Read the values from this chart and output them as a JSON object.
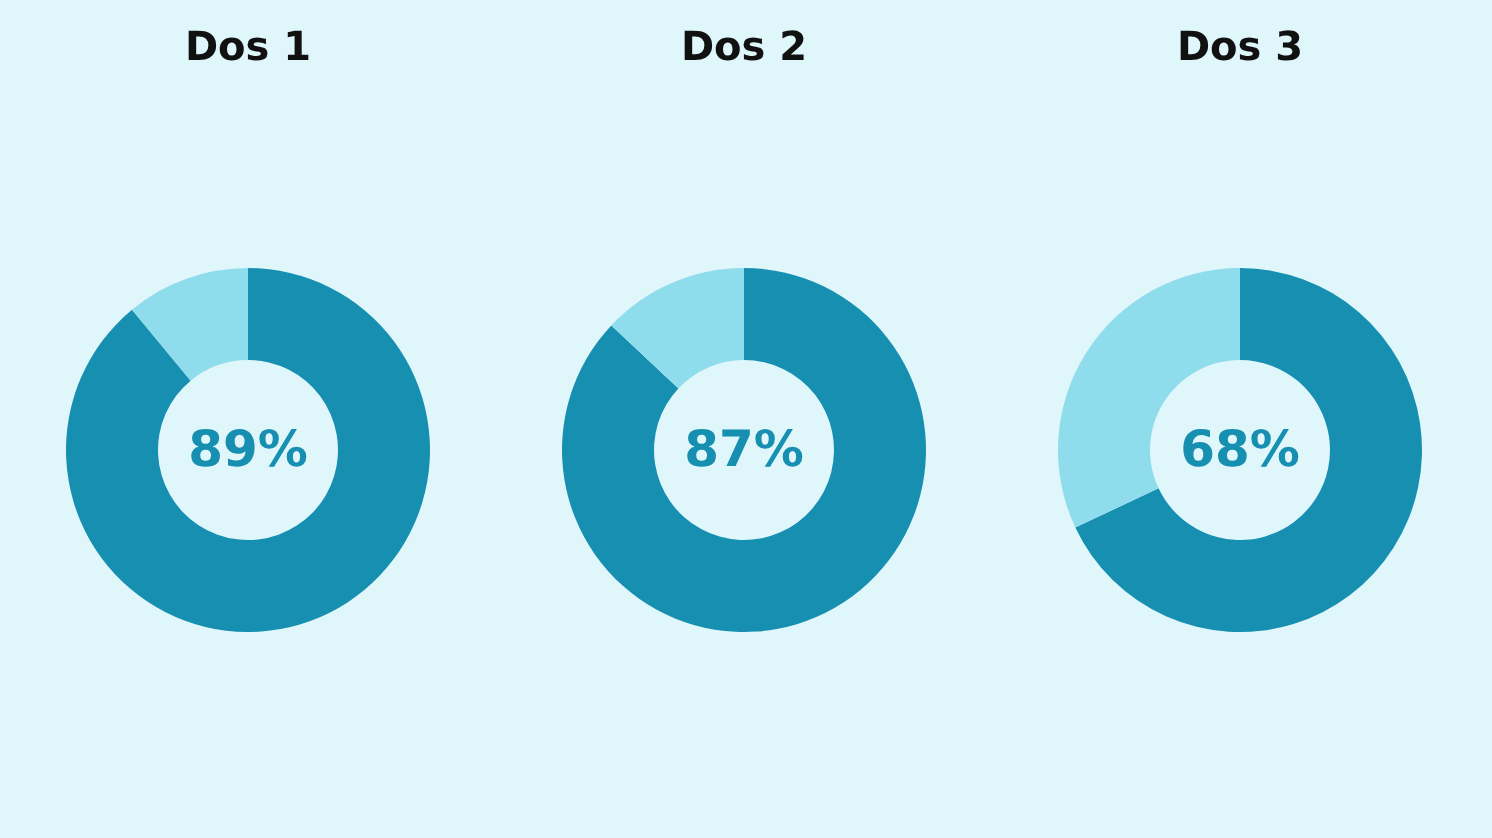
{
  "chart_data": [
    {
      "type": "donut",
      "title": "Dos 1",
      "categories": [
        null,
        null
      ],
      "values": [
        89,
        11
      ],
      "colors": [
        "#168fb0",
        "#8fdcec"
      ],
      "annotations": [
        "89%"
      ]
    },
    {
      "type": "donut",
      "title": "Dos 2",
      "categories": [
        null,
        null
      ],
      "values": [
        87,
        13
      ],
      "colors": [
        "#168fb0",
        "#8fdcec"
      ],
      "annotations": [
        "87%"
      ]
    },
    {
      "type": "donut",
      "title": "Dos 3",
      "categories": [
        null,
        null
      ],
      "values": [
        68,
        32
      ],
      "colors": [
        "#168fb0",
        "#8fdcec"
      ],
      "annotations": [
        "68%"
      ]
    }
  ]
}
